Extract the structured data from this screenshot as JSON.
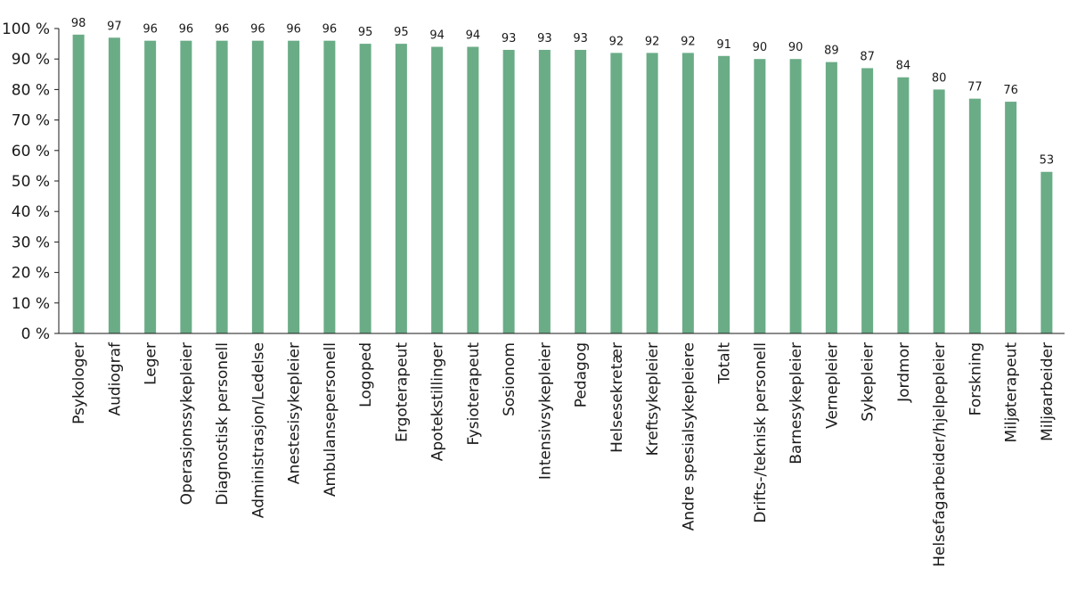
{
  "chart_data": {
    "type": "bar",
    "title": "",
    "xlabel": "",
    "ylabel": "",
    "ylim": [
      0,
      100
    ],
    "yticks": [
      0,
      10,
      20,
      30,
      40,
      50,
      60,
      70,
      80,
      90,
      100
    ],
    "ytick_suffix": " %",
    "grid": false,
    "bar_color": "#6aac86",
    "categories": [
      "Psykologer",
      "Audiograf",
      "Leger",
      "Operasjonssykepleier",
      "Diagnostisk personell",
      "Administrasjon/Ledelse",
      "Anestesisykepleier",
      "Ambulansepersonell",
      "Logoped",
      "Ergoterapeut",
      "Apotekstillinger",
      "Fysioterapeut",
      "Sosionom",
      "Intensivsykepleier",
      "Pedagog",
      "Helsesekretær",
      "Kreftsykepleier",
      "Andre spesialsykepleiere",
      "Totalt",
      "Drifts-/teknisk personell",
      "Barnesykepleier",
      "Vernepleier",
      "Sykepleier",
      "Jordmor",
      "Helsefagarbeider/hjelpepleier",
      "Forskning",
      "Miljøterapeut",
      "Miljøarbeider"
    ],
    "values": [
      98,
      97,
      96,
      96,
      96,
      96,
      96,
      96,
      95,
      95,
      94,
      94,
      93,
      93,
      93,
      92,
      92,
      92,
      91,
      90,
      90,
      89,
      87,
      84,
      80,
      77,
      76,
      53
    ],
    "data_labels": [
      "98",
      "97",
      "96",
      "96",
      "96",
      "96",
      "96",
      "96",
      "95",
      "95",
      "94",
      "94",
      "93",
      "93",
      "93",
      "92",
      "92",
      "92",
      "91",
      "90",
      "90",
      "89",
      "87",
      "84",
      "80",
      "77",
      "76",
      "53"
    ]
  }
}
